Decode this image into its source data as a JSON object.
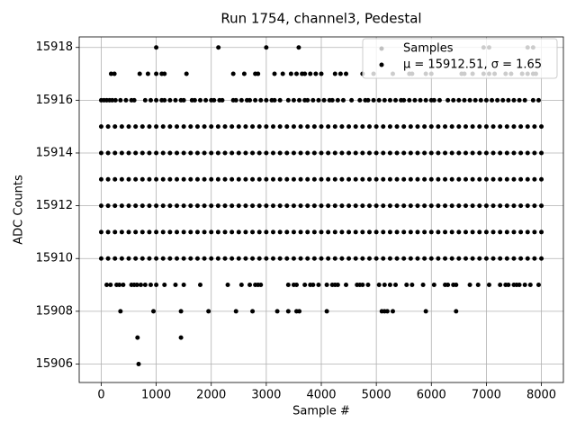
{
  "chart_data": {
    "type": "scatter",
    "title": "Run 1754, channel3, Pedestal",
    "x_label": "Sample #",
    "y_label": "ADC Counts",
    "xlim": [
      -400,
      8400
    ],
    "ylim": [
      15905.3,
      15918.4
    ],
    "xticks": [
      0,
      1000,
      2000,
      3000,
      4000,
      5000,
      6000,
      7000,
      8000
    ],
    "yticks": [
      15906,
      15908,
      15910,
      15912,
      15914,
      15916,
      15918
    ],
    "grid": true,
    "color": "#000000",
    "legend_position": "upper right",
    "legend": [
      {
        "label": "Samples",
        "color": "#c0c0c0"
      },
      {
        "label": "μ = 15912.51, σ = 1.65",
        "color": "#000000"
      }
    ],
    "levels": [
      {
        "y": 15906,
        "x": [
          680
        ]
      },
      {
        "y": 15907,
        "x": [
          660,
          1450
        ]
      },
      {
        "y": 15908,
        "x": [
          350,
          950,
          1450,
          1950,
          2450,
          2750,
          3200,
          3400,
          3550,
          3600,
          4100,
          5100,
          5150,
          5200,
          5300,
          5900,
          6450
        ]
      },
      {
        "y": 15909,
        "x": [
          100,
          170,
          280,
          330,
          400,
          550,
          600,
          650,
          720,
          800,
          900,
          1000,
          1150,
          1350,
          1500,
          1800,
          2300,
          2550,
          2700,
          2800,
          2850,
          2900,
          3400,
          3500,
          3550,
          3700,
          3800,
          3850,
          3950,
          4100,
          4200,
          4250,
          4300,
          4450,
          4650,
          4700,
          4750,
          4850,
          5050,
          5150,
          5250,
          5350,
          5550,
          5650,
          5850,
          6050,
          6250,
          6300,
          6400,
          6450,
          6700,
          6850,
          7050,
          7250,
          7350,
          7400,
          7500,
          7550,
          7600,
          7700,
          7800,
          7950
        ]
      },
      {
        "y": 15910,
        "x": [
          0,
          125,
          250,
          375,
          500,
          625,
          750,
          875,
          1000,
          1125,
          1250,
          1375,
          1500,
          1625,
          1750,
          1875,
          2000,
          2125,
          2250,
          2375,
          2500,
          2625,
          2750,
          2875,
          3000,
          3125,
          3250,
          3375,
          3500,
          3625,
          3750,
          3875,
          4000,
          4125,
          4250,
          4375,
          4500,
          4625,
          4750,
          4875,
          5000,
          5125,
          5250,
          5375,
          5500,
          5625,
          5750,
          5875,
          6000,
          6125,
          6250,
          6375,
          6500,
          6625,
          6750,
          6875,
          7000,
          7125,
          7250,
          7375,
          7500,
          7625,
          7750,
          7875,
          8000
        ]
      },
      {
        "y": 15911,
        "x": [
          0,
          125,
          250,
          375,
          500,
          625,
          750,
          875,
          1000,
          1125,
          1250,
          1375,
          1500,
          1625,
          1750,
          1875,
          2000,
          2125,
          2250,
          2375,
          2500,
          2625,
          2750,
          2875,
          3000,
          3125,
          3250,
          3375,
          3500,
          3625,
          3750,
          3875,
          4000,
          4125,
          4250,
          4375,
          4500,
          4625,
          4750,
          4875,
          5000,
          5125,
          5250,
          5375,
          5500,
          5625,
          5750,
          5875,
          6000,
          6125,
          6250,
          6375,
          6500,
          6625,
          6750,
          6875,
          7000,
          7125,
          7250,
          7375,
          7500,
          7625,
          7750,
          7875,
          8000
        ]
      },
      {
        "y": 15912,
        "x": [
          0,
          125,
          250,
          375,
          500,
          625,
          750,
          875,
          1000,
          1125,
          1250,
          1375,
          1500,
          1625,
          1750,
          1875,
          2000,
          2125,
          2250,
          2375,
          2500,
          2625,
          2750,
          2875,
          3000,
          3125,
          3250,
          3375,
          3500,
          3625,
          3750,
          3875,
          4000,
          4125,
          4250,
          4375,
          4500,
          4625,
          4750,
          4875,
          5000,
          5125,
          5250,
          5375,
          5500,
          5625,
          5750,
          5875,
          6000,
          6125,
          6250,
          6375,
          6500,
          6625,
          6750,
          6875,
          7000,
          7125,
          7250,
          7375,
          7500,
          7625,
          7750,
          7875,
          8000
        ]
      },
      {
        "y": 15913,
        "x": [
          0,
          125,
          250,
          375,
          500,
          625,
          750,
          875,
          1000,
          1125,
          1250,
          1375,
          1500,
          1625,
          1750,
          1875,
          2000,
          2125,
          2250,
          2375,
          2500,
          2625,
          2750,
          2875,
          3000,
          3125,
          3250,
          3375,
          3500,
          3625,
          3750,
          3875,
          4000,
          4125,
          4250,
          4375,
          4500,
          4625,
          4750,
          4875,
          5000,
          5125,
          5250,
          5375,
          5500,
          5625,
          5750,
          5875,
          6000,
          6125,
          6250,
          6375,
          6500,
          6625,
          6750,
          6875,
          7000,
          7125,
          7250,
          7375,
          7500,
          7625,
          7750,
          7875,
          8000
        ]
      },
      {
        "y": 15914,
        "x": [
          0,
          125,
          250,
          375,
          500,
          625,
          750,
          875,
          1000,
          1125,
          1250,
          1375,
          1500,
          1625,
          1750,
          1875,
          2000,
          2125,
          2250,
          2375,
          2500,
          2625,
          2750,
          2875,
          3000,
          3125,
          3250,
          3375,
          3500,
          3625,
          3750,
          3875,
          4000,
          4125,
          4250,
          4375,
          4500,
          4625,
          4750,
          4875,
          5000,
          5125,
          5250,
          5375,
          5500,
          5625,
          5750,
          5875,
          6000,
          6125,
          6250,
          6375,
          6500,
          6625,
          6750,
          6875,
          7000,
          7125,
          7250,
          7375,
          7500,
          7625,
          7750,
          7875,
          8000
        ]
      },
      {
        "y": 15915,
        "x": [
          0,
          125,
          250,
          375,
          500,
          625,
          750,
          875,
          1000,
          1125,
          1250,
          1375,
          1500,
          1625,
          1750,
          1875,
          2000,
          2125,
          2250,
          2375,
          2500,
          2625,
          2750,
          2875,
          3000,
          3125,
          3250,
          3375,
          3500,
          3625,
          3750,
          3875,
          4000,
          4125,
          4250,
          4375,
          4500,
          4625,
          4750,
          4875,
          5000,
          5125,
          5250,
          5375,
          5500,
          5625,
          5750,
          5875,
          6000,
          6125,
          6250,
          6375,
          6500,
          6625,
          6750,
          6875,
          7000,
          7125,
          7250,
          7375,
          7500,
          7625,
          7750,
          7875,
          8000
        ]
      },
      {
        "y": 15916,
        "x": [
          0,
          50,
          100,
          150,
          200,
          260,
          350,
          450,
          550,
          600,
          800,
          900,
          1000,
          1100,
          1150,
          1250,
          1350,
          1450,
          1500,
          1650,
          1700,
          1800,
          1900,
          2000,
          2050,
          2150,
          2200,
          2400,
          2450,
          2550,
          2650,
          2700,
          2800,
          2900,
          3000,
          3100,
          3150,
          3250,
          3400,
          3500,
          3600,
          3700,
          3750,
          3850,
          3950,
          4050,
          4150,
          4200,
          4300,
          4400,
          4550,
          4700,
          4800,
          4850,
          4950,
          5050,
          5150,
          5250,
          5350,
          5450,
          5500,
          5600,
          5700,
          5800,
          5900,
          6000,
          6050,
          6150,
          6300,
          6400,
          6500,
          6600,
          6700,
          6800,
          6900,
          7000,
          7100,
          7200,
          7300,
          7400,
          7500,
          7600,
          7700,
          7850,
          7950
        ]
      },
      {
        "y": 15917,
        "x": [
          180,
          240,
          700,
          850,
          1000,
          1100,
          1150,
          1550,
          2400,
          2600,
          2800,
          2850,
          3150,
          3300,
          3450,
          3550,
          3650,
          3700,
          3800,
          3900,
          4000,
          4250,
          4350,
          4450,
          4750,
          4950,
          5300,
          5600,
          5650,
          5900,
          6000,
          6550,
          6600,
          6750,
          6950,
          7050,
          7150,
          7350,
          7450,
          7650,
          7750,
          7850,
          7900
        ]
      },
      {
        "y": 15918,
        "x": [
          1000,
          2130,
          3000,
          3590,
          6950,
          7050,
          7750,
          7850
        ]
      }
    ]
  }
}
